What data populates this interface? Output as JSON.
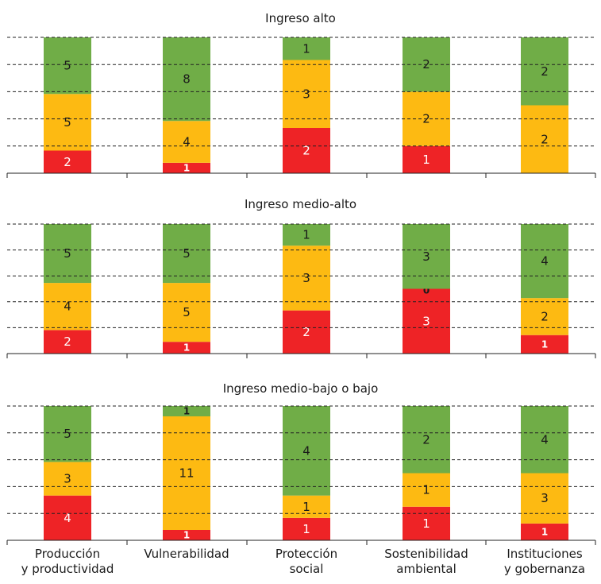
{
  "chart_data": [
    {
      "type": "bar",
      "stacked": true,
      "title": "Ingreso alto",
      "categories": [
        "Producción y productividad",
        "Vulnerabilidad",
        "Protección social",
        "Sostenibilidad ambiental",
        "Instituciones y gobernanza"
      ],
      "series": [
        {
          "color": "#ee2326",
          "values": [
            2,
            1,
            2,
            1,
            0
          ]
        },
        {
          "color": "#fdba12",
          "values": [
            5,
            4,
            3,
            2,
            2
          ]
        },
        {
          "color": "#70ad47",
          "values": [
            5,
            8,
            1,
            2,
            2
          ]
        }
      ],
      "grid": true
    },
    {
      "type": "bar",
      "stacked": true,
      "title": "Ingreso medio-alto",
      "categories": [
        "Producción y productividad",
        "Vulnerabilidad",
        "Protección social",
        "Sostenibilidad ambiental",
        "Instituciones y gobernanza"
      ],
      "series": [
        {
          "color": "#ee2326",
          "values": [
            2,
            1,
            2,
            3,
            1
          ]
        },
        {
          "color": "#fdba12",
          "values": [
            4,
            5,
            3,
            0,
            2
          ]
        },
        {
          "color": "#70ad47",
          "values": [
            5,
            5,
            1,
            3,
            4
          ]
        }
      ],
      "grid": true
    },
    {
      "type": "bar",
      "stacked": true,
      "title": "Ingreso medio-bajo o bajo",
      "categories": [
        "Producción y productividad",
        "Vulnerabilidad",
        "Protección social",
        "Sostenibilidad ambiental",
        "Instituciones y gobernanza"
      ],
      "category_labels": [
        [
          "Producción",
          "y productividad"
        ],
        [
          "Vulnerabilidad"
        ],
        [
          "Protección",
          "social"
        ],
        [
          "Sostenibilidad",
          "ambiental"
        ],
        [
          "Instituciones",
          "y gobernanza"
        ]
      ],
      "series": [
        {
          "color": "#ee2326",
          "values": [
            4,
            1,
            1,
            1,
            1
          ]
        },
        {
          "color": "#fdba12",
          "values": [
            3,
            11,
            1,
            1,
            3
          ]
        },
        {
          "color": "#70ad47",
          "values": [
            5,
            1,
            4,
            2,
            4
          ]
        }
      ],
      "grid": true
    }
  ]
}
